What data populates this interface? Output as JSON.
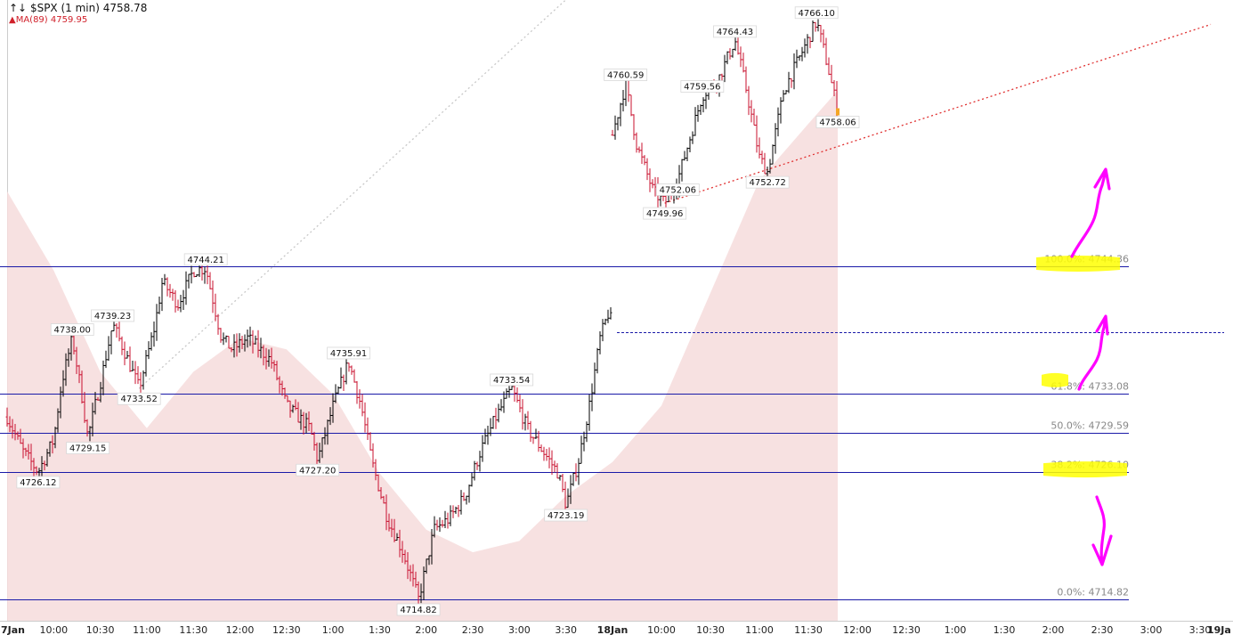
{
  "header": {
    "symbol_line": "$SPX (1 min) 4758.78",
    "ma_line": "MA(89) 4759.95"
  },
  "colors": {
    "up": "#000000",
    "down": "#c8102e",
    "ma_fill": "#f6dcdc",
    "level_line": "#1a1aa8",
    "trendline": "#e03030",
    "trendline_grey": "#c8c8c8",
    "marker": "#ff00ff",
    "highlight": "#ffff00"
  },
  "chart_data": {
    "type": "candlestick",
    "interval": "1 min",
    "ylim": [
      4712,
      4768
    ],
    "x_ticks": [
      "7Jan",
      "10:00",
      "10:30",
      "11:00",
      "11:30",
      "12:00",
      "12:30",
      "1:00",
      "1:30",
      "2:00",
      "2:30",
      "3:00",
      "3:30",
      "18Jan",
      "10:00",
      "10:30",
      "11:00",
      "11:30",
      "12:00",
      "12:30",
      "1:00",
      "1:30",
      "2:00",
      "2:30",
      "3:00",
      "3:30",
      "19Ja"
    ],
    "bold_ticks": [
      "7Jan",
      "18Jan",
      "19Ja"
    ],
    "price_path_day1": [
      [
        "09:30",
        4731
      ],
      [
        "09:40",
        4728
      ],
      [
        "09:50",
        4726.12
      ],
      [
        "10:00",
        4729
      ],
      [
        "10:05",
        4734
      ],
      [
        "10:12",
        4738.0
      ],
      [
        "10:18",
        4733
      ],
      [
        "10:22",
        4729.15
      ],
      [
        "10:30",
        4734
      ],
      [
        "10:38",
        4739.23
      ],
      [
        "10:45",
        4737
      ],
      [
        "10:55",
        4733.52
      ],
      [
        "11:05",
        4739
      ],
      [
        "11:10",
        4743
      ],
      [
        "11:20",
        4741
      ],
      [
        "11:30",
        4744
      ],
      [
        "11:38",
        4744.21
      ],
      [
        "11:48",
        4738
      ],
      [
        "11:55",
        4737
      ],
      [
        "12:05",
        4738
      ],
      [
        "12:20",
        4736
      ],
      [
        "12:30",
        4732
      ],
      [
        "12:45",
        4730
      ],
      [
        "12:50",
        4727.2
      ],
      [
        "13:00",
        4732
      ],
      [
        "13:10",
        4735.91
      ],
      [
        "13:18",
        4732
      ],
      [
        "13:25",
        4727
      ],
      [
        "13:35",
        4722
      ],
      [
        "13:45",
        4719
      ],
      [
        "13:55",
        4714.82
      ],
      [
        "14:05",
        4721
      ],
      [
        "14:15",
        4722
      ],
      [
        "14:25",
        4724
      ],
      [
        "14:35",
        4728
      ],
      [
        "14:45",
        4731
      ],
      [
        "14:55",
        4733.54
      ],
      [
        "15:05",
        4730
      ],
      [
        "15:15",
        4728
      ],
      [
        "15:25",
        4726
      ],
      [
        "15:30",
        4723.19
      ],
      [
        "15:38",
        4727
      ],
      [
        "15:45",
        4732
      ],
      [
        "15:52",
        4738
      ],
      [
        "15:58",
        4740.5
      ],
      [
        "16:00",
        4738.5
      ]
    ],
    "price_path_day2": [
      [
        "09:30",
        4756
      ],
      [
        "09:38",
        4760.59
      ],
      [
        "09:45",
        4755
      ],
      [
        "09:55",
        4751
      ],
      [
        "10:02",
        4749.96
      ],
      [
        "10:10",
        4752.06
      ],
      [
        "10:18",
        4756
      ],
      [
        "10:25",
        4759.56
      ],
      [
        "10:35",
        4761
      ],
      [
        "10:45",
        4764.43
      ],
      [
        "10:52",
        4760
      ],
      [
        "11:00",
        4754
      ],
      [
        "11:05",
        4752.72
      ],
      [
        "11:15",
        4760
      ],
      [
        "11:25",
        4763
      ],
      [
        "11:35",
        4766.1
      ],
      [
        "11:42",
        4762
      ],
      [
        "11:48",
        4758.06
      ]
    ],
    "ma_path": [
      [
        "d1 09:30",
        4751
      ],
      [
        "d1 10:00",
        4744
      ],
      [
        "d1 10:30",
        4735
      ],
      [
        "d1 11:00",
        4730
      ],
      [
        "d1 11:30",
        4735
      ],
      [
        "d1 12:00",
        4738
      ],
      [
        "d1 12:30",
        4737
      ],
      [
        "d1 13:00",
        4733
      ],
      [
        "d1 13:30",
        4726
      ],
      [
        "d1 14:00",
        4721
      ],
      [
        "d1 14:30",
        4719
      ],
      [
        "d1 15:00",
        4720
      ],
      [
        "d1 15:30",
        4724
      ],
      [
        "d1 16:00",
        4727
      ],
      [
        "d2 10:00",
        4732
      ],
      [
        "d2 10:30",
        4742
      ],
      [
        "d2 11:00",
        4752
      ],
      [
        "d2 11:30",
        4757
      ],
      [
        "d2 11:48",
        4759.95
      ]
    ],
    "annotations": [
      {
        "label": "4738.00",
        "time": "d1 10:12",
        "price": 4738.0,
        "pos": "above"
      },
      {
        "label": "4739.23",
        "time": "d1 10:38",
        "price": 4739.23,
        "pos": "above"
      },
      {
        "label": "4744.21",
        "time": "d1 11:38",
        "price": 4744.21,
        "pos": "above"
      },
      {
        "label": "4733.52",
        "time": "d1 10:55",
        "price": 4733.52,
        "pos": "below"
      },
      {
        "label": "4729.15",
        "time": "d1 10:22",
        "price": 4729.15,
        "pos": "below"
      },
      {
        "label": "4726.12",
        "time": "d1 09:50",
        "price": 4726.12,
        "pos": "below"
      },
      {
        "label": "4735.91",
        "time": "d1 13:10",
        "price": 4735.91,
        "pos": "above"
      },
      {
        "label": "4727.20",
        "time": "d1 12:50",
        "price": 4727.2,
        "pos": "below"
      },
      {
        "label": "4714.82",
        "time": "d1 13:55",
        "price": 4714.82,
        "pos": "below"
      },
      {
        "label": "4733.54",
        "time": "d1 14:55",
        "price": 4733.54,
        "pos": "above"
      },
      {
        "label": "4723.19",
        "time": "d1 15:30",
        "price": 4723.19,
        "pos": "below"
      },
      {
        "label": "4760.59",
        "time": "d2 09:38",
        "price": 4760.59,
        "pos": "above"
      },
      {
        "label": "4759.56",
        "time": "d2 10:25",
        "price": 4759.56,
        "pos": "above"
      },
      {
        "label": "4764.43",
        "time": "d2 10:45",
        "price": 4764.43,
        "pos": "above"
      },
      {
        "label": "4766.10",
        "time": "d2 11:35",
        "price": 4766.1,
        "pos": "above"
      },
      {
        "label": "4749.96",
        "time": "d2 10:02",
        "price": 4749.96,
        "pos": "below"
      },
      {
        "label": "4752.06",
        "time": "d2 10:10",
        "price": 4752.06,
        "pos": "below"
      },
      {
        "label": "4752.72",
        "time": "d2 11:05",
        "price": 4752.72,
        "pos": "below"
      },
      {
        "label": "4758.06",
        "time": "d2 11:48",
        "price": 4758.06,
        "pos": "below"
      }
    ],
    "fib_levels": [
      {
        "label": "100.0%: 4744.36",
        "price": 4744.36,
        "highlight": true
      },
      {
        "label": "61.8%: 4733.08",
        "price": 4733.08,
        "highlight": true
      },
      {
        "label": "50.0%: 4729.59",
        "price": 4729.59,
        "highlight": false
      },
      {
        "label": "38.2%: 4726.10",
        "price": 4726.1,
        "highlight": true
      },
      {
        "label": "0.0%: 4714.82",
        "price": 4714.82,
        "highlight": false
      }
    ],
    "close_line_price": 4738.5,
    "trendlines": [
      {
        "style": "dotted",
        "color": "grey",
        "from": [
          "d1 10:55",
          4733.52
        ],
        "to": [
          "d1 15:30",
          4768
        ]
      },
      {
        "style": "dotted",
        "color": "red",
        "from": [
          "d2 10:02",
          4749.96
        ],
        "to": [
          "d2 15:30",
          4765.5
        ]
      }
    ],
    "arrows": [
      {
        "direction": "up",
        "near_level": "100.0%"
      },
      {
        "direction": "up",
        "near_level": "61.8%"
      },
      {
        "direction": "down",
        "near_level": "38.2%"
      }
    ]
  }
}
